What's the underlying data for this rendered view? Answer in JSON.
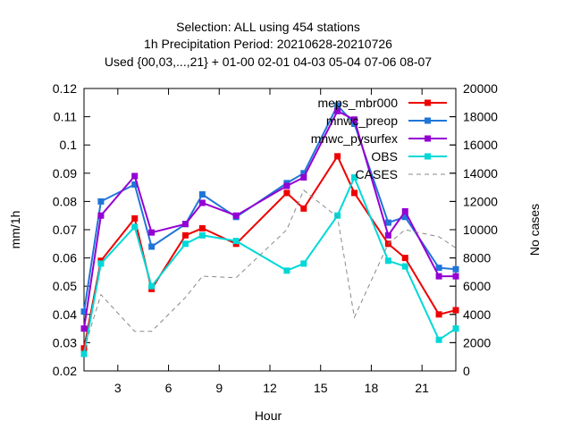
{
  "title_lines": [
    "Selection: ALL using   454 stations",
    "1h Precipitation    Period: 20210628-20210726",
    "Used {00,03,...,21} + 01-00 02-01 04-03 05-04 07-06 08-07"
  ],
  "chart_data": {
    "type": "line",
    "xlabel": "Hour",
    "ylabel": "mm/1h",
    "y2label": "No cases",
    "xlim": [
      1,
      23
    ],
    "ylim": [
      0.02,
      0.12
    ],
    "y2lim": [
      0,
      20000
    ],
    "xticks": [
      3,
      6,
      9,
      12,
      15,
      18,
      21
    ],
    "yticks": [
      0.02,
      0.03,
      0.04,
      0.05,
      0.06,
      0.07,
      0.08,
      0.09,
      0.1,
      0.11,
      0.12
    ],
    "ytick_labels": [
      "0.02",
      "0.03",
      "0.04",
      "0.05",
      "0.06",
      "0.07",
      "0.08",
      "0.09",
      "0.1",
      "0.11",
      "0.12"
    ],
    "y2ticks": [
      0,
      2000,
      4000,
      6000,
      8000,
      10000,
      12000,
      14000,
      16000,
      18000,
      20000
    ],
    "legend_position": "top-right",
    "grid": false,
    "x": [
      1,
      2,
      4,
      5,
      7,
      8,
      10,
      13,
      14,
      16,
      17,
      19,
      20,
      22,
      23
    ],
    "series": [
      {
        "name": "meps_mbr000",
        "color": "#ee0000",
        "marker": "square",
        "axis": "y",
        "values": [
          0.028,
          0.059,
          0.074,
          0.049,
          0.068,
          0.0705,
          0.065,
          0.083,
          0.0775,
          0.096,
          0.083,
          0.065,
          0.06,
          0.04,
          0.0415
        ]
      },
      {
        "name": "mnwc_preop",
        "color": "#1f75d8",
        "marker": "square",
        "axis": "y",
        "values": [
          0.041,
          0.08,
          0.086,
          0.064,
          0.072,
          0.0825,
          0.0745,
          0.0865,
          0.09,
          0.114,
          0.1075,
          0.0725,
          0.0745,
          0.0565,
          0.056
        ]
      },
      {
        "name": "mnwc_pysurfex",
        "color": "#9400d3",
        "marker": "square",
        "axis": "y",
        "values": [
          0.035,
          0.075,
          0.089,
          0.069,
          0.072,
          0.0795,
          0.075,
          0.0855,
          0.0885,
          0.112,
          0.109,
          0.068,
          0.0765,
          0.0535,
          0.0535
        ]
      },
      {
        "name": "OBS",
        "color": "#00d8d8",
        "marker": "square",
        "axis": "y",
        "values": [
          0.026,
          0.058,
          0.071,
          0.05,
          0.065,
          0.068,
          0.066,
          0.0555,
          0.058,
          0.075,
          0.0885,
          0.059,
          0.057,
          0.031,
          0.035
        ]
      },
      {
        "name": "CASES",
        "color": "#888888",
        "dashed": true,
        "axis": "y2",
        "values": [
          1500,
          5400,
          2800,
          2800,
          5200,
          6700,
          6600,
          10000,
          12800,
          10900,
          3800,
          9000,
          10000,
          9500,
          8700
        ]
      }
    ]
  }
}
